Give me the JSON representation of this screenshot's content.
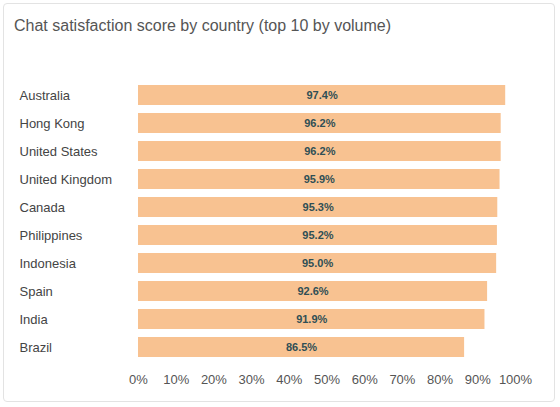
{
  "chart_data": {
    "type": "bar",
    "orientation": "horizontal",
    "title": "Chat satisfaction score by country (top 10 by volume)",
    "categories": [
      "Australia",
      "Hong Kong",
      "United States",
      "United Kingdom",
      "Canada",
      "Philippines",
      "Indonesia",
      "Spain",
      "India",
      "Brazil"
    ],
    "values": [
      97.4,
      96.2,
      96.2,
      95.9,
      95.3,
      95.2,
      95.0,
      92.6,
      91.9,
      86.5
    ],
    "value_labels": [
      "97.4%",
      "96.2%",
      "96.2%",
      "95.9%",
      "95.3%",
      "95.2%",
      "95.0%",
      "92.6%",
      "91.9%",
      "86.5%"
    ],
    "data_labels": true,
    "color": "#f8c291",
    "xlim": [
      0,
      100
    ],
    "xticks": [
      {
        "value": 0,
        "label": "0%"
      },
      {
        "value": 10,
        "label": "10%"
      },
      {
        "value": 20,
        "label": "20%"
      },
      {
        "value": 30,
        "label": "30%"
      },
      {
        "value": 40,
        "label": "40%"
      },
      {
        "value": 50,
        "label": "50%"
      },
      {
        "value": 60,
        "label": "60%"
      },
      {
        "value": 70,
        "label": "70%"
      },
      {
        "value": 80,
        "label": "80%"
      },
      {
        "value": 90,
        "label": "90%"
      },
      {
        "value": 100,
        "label": "100%"
      }
    ],
    "grid": false
  }
}
